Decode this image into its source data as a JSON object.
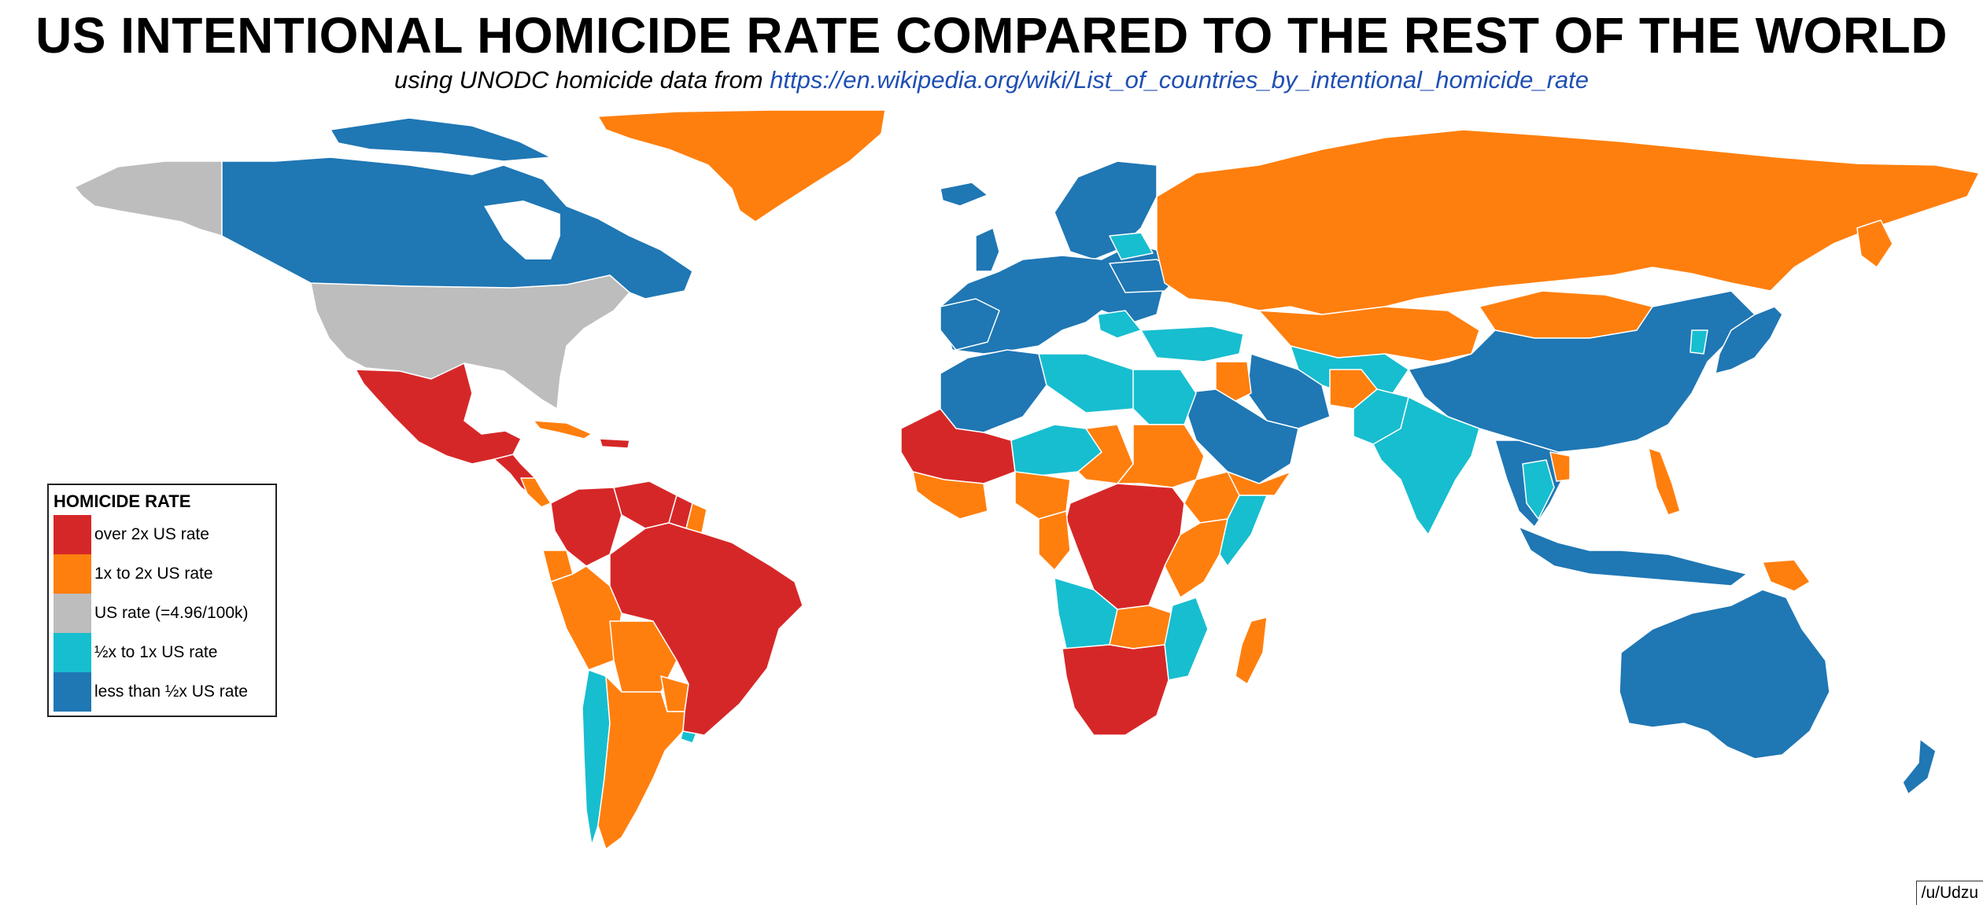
{
  "title": "US INTENTIONAL HOMICIDE RATE COMPARED TO THE REST OF THE WORLD",
  "subtitle": {
    "prefix": "using UNODC homicide data from ",
    "link": "https://en.wikipedia.org/wiki/List_of_countries_by_intentional_homicide_rate"
  },
  "legend": {
    "title": "HOMICIDE RATE",
    "items": [
      {
        "label": "over 2x US rate",
        "color": "#d62728",
        "category": "over2x"
      },
      {
        "label": "1x to 2x US rate",
        "color": "#ff7f0e",
        "category": "1to2x"
      },
      {
        "label": "US rate (=4.96/100k)",
        "color": "#bdbdbd",
        "category": "us"
      },
      {
        "label": "½x to 1x US rate",
        "color": "#17becf",
        "category": "half"
      },
      {
        "label": "less than ½x US rate",
        "color": "#1f77b4",
        "category": "low"
      }
    ]
  },
  "credit": "/u/Udzu"
}
